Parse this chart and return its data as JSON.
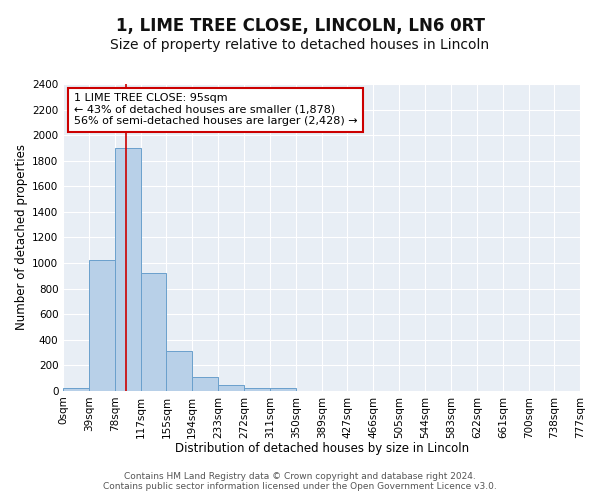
{
  "title": "1, LIME TREE CLOSE, LINCOLN, LN6 0RT",
  "subtitle": "Size of property relative to detached houses in Lincoln",
  "xlabel": "Distribution of detached houses by size in Lincoln",
  "ylabel": "Number of detached properties",
  "bar_values": [
    20,
    1020,
    1900,
    920,
    315,
    105,
    45,
    20,
    20,
    0,
    0,
    0,
    0,
    0,
    0,
    0,
    0,
    0,
    0,
    0
  ],
  "bin_edges": [
    0,
    39,
    78,
    117,
    155,
    194,
    233,
    272,
    311,
    350,
    389,
    427,
    466,
    505,
    544,
    583,
    622,
    661,
    700,
    738,
    777
  ],
  "tick_labels": [
    "0sqm",
    "39sqm",
    "78sqm",
    "117sqm",
    "155sqm",
    "194sqm",
    "233sqm",
    "272sqm",
    "311sqm",
    "350sqm",
    "389sqm",
    "427sqm",
    "466sqm",
    "505sqm",
    "544sqm",
    "583sqm",
    "622sqm",
    "661sqm",
    "700sqm",
    "738sqm",
    "777sqm"
  ],
  "bar_color": "#b8d0e8",
  "bar_edge_color": "#6aa0cc",
  "red_line_x": 95,
  "annotation_line1": "1 LIME TREE CLOSE: 95sqm",
  "annotation_line2": "← 43% of detached houses are smaller (1,878)",
  "annotation_line3": "56% of semi-detached houses are larger (2,428) →",
  "annotation_box_color": "#ffffff",
  "annotation_box_edge": "#cc0000",
  "ylim": [
    0,
    2400
  ],
  "yticks": [
    0,
    200,
    400,
    600,
    800,
    1000,
    1200,
    1400,
    1600,
    1800,
    2000,
    2200,
    2400
  ],
  "footer1": "Contains HM Land Registry data © Crown copyright and database right 2024.",
  "footer2": "Contains public sector information licensed under the Open Government Licence v3.0.",
  "bg_color": "#ffffff",
  "plot_bg_color": "#e8eef5",
  "grid_color": "#ffffff",
  "title_fontsize": 12,
  "subtitle_fontsize": 10,
  "axis_label_fontsize": 8.5,
  "tick_fontsize": 7.5,
  "annotation_fontsize": 8,
  "footer_fontsize": 6.5
}
